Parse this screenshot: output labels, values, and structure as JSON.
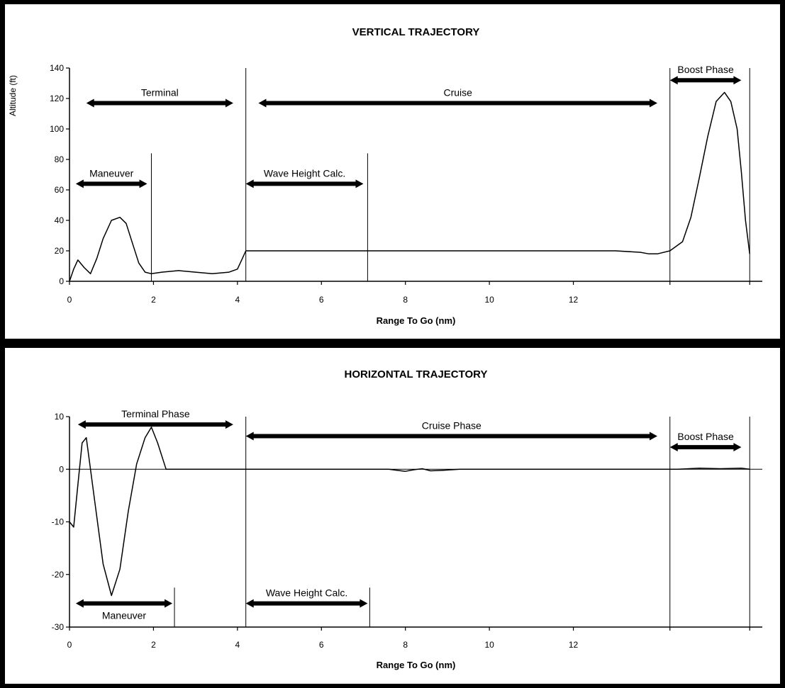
{
  "chart_data": [
    {
      "type": "line",
      "title": "VERTICAL TRAJECTORY",
      "xlabel": "Range To Go (nm)",
      "ylabel": "Altitude (ft)",
      "xlim": [
        0,
        16.5
      ],
      "ylim": [
        0,
        140
      ],
      "x_ticks": [
        "0",
        "2",
        "4",
        "6",
        "8",
        "10",
        "12"
      ],
      "y_ticks": [
        "0",
        "20",
        "40",
        "60",
        "80",
        "100",
        "120",
        "140"
      ],
      "phases": [
        {
          "label": "Terminal",
          "from": 0.4,
          "to": 3.9,
          "y": 117,
          "divider": 4.2
        },
        {
          "label": "Cruise",
          "from": 4.5,
          "to": 14.0,
          "y": 117,
          "divider": null
        },
        {
          "label": "Boost Phase",
          "from": 14.3,
          "to": 16.0,
          "y": 132,
          "divider": 16.2
        },
        {
          "label": "Maneuver",
          "from": 0.15,
          "to": 1.85,
          "y": 64,
          "divider": 1.95
        },
        {
          "label": "Wave Height Calc.",
          "from": 4.2,
          "to": 7.0,
          "y": 64,
          "divider": 7.1
        }
      ],
      "extra_dividers": [
        14.3
      ],
      "series": [
        {
          "x": [
            0,
            0.1,
            0.2,
            0.35,
            0.5,
            0.65,
            0.8,
            1.0,
            1.2,
            1.35,
            1.5,
            1.65,
            1.8,
            1.95,
            2.2,
            2.6,
            3.0,
            3.4,
            3.8,
            4.0,
            4.1,
            4.2,
            5,
            6,
            7,
            8,
            9,
            10,
            11,
            12,
            13,
            13.6,
            13.8,
            14.0,
            14.3,
            14.6,
            14.8,
            15.0,
            15.2,
            15.4,
            15.6,
            15.75,
            15.9,
            16.0,
            16.1,
            16.2
          ],
          "y": [
            0,
            8,
            14,
            9,
            5,
            15,
            28,
            40,
            42,
            38,
            25,
            12,
            6,
            5,
            6,
            7,
            6,
            5,
            6,
            8,
            14,
            20,
            20,
            20,
            20,
            20,
            20,
            20,
            20,
            20,
            20,
            19,
            18,
            18,
            20,
            26,
            42,
            68,
            95,
            118,
            124,
            118,
            100,
            72,
            40,
            18
          ]
        }
      ]
    },
    {
      "type": "line",
      "title": "HORIZONTAL TRAJECTORY",
      "xlabel": "Range To Go (nm)",
      "ylabel": "",
      "xlim": [
        0,
        16.5
      ],
      "ylim": [
        -30,
        10
      ],
      "x_ticks": [
        "0",
        "2",
        "4",
        "6",
        "8",
        "10",
        "12"
      ],
      "y_ticks": [
        "10",
        "0",
        "-10",
        "-20",
        "-30"
      ],
      "phases": [
        {
          "label": "Terminal Phase",
          "from": 0.2,
          "to": 3.9,
          "y": 8.5,
          "divider": 4.2
        },
        {
          "label": "Cruise Phase",
          "from": 4.2,
          "to": 14.0,
          "y": 6.3,
          "divider": null
        },
        {
          "label": "Boost Phase",
          "from": 14.3,
          "to": 16.0,
          "y": 4.2,
          "divider": 16.2
        },
        {
          "label": "Maneuver",
          "from": 0.15,
          "to": 2.45,
          "y": -25.5,
          "divider": 2.5
        },
        {
          "label": "Wave Height Calc.",
          "from": 4.2,
          "to": 7.1,
          "y": -25.5,
          "divider": 7.15
        }
      ],
      "extra_dividers": [
        14.3
      ],
      "series": [
        {
          "x": [
            0,
            0.1,
            0.2,
            0.3,
            0.4,
            0.6,
            0.8,
            1.0,
            1.2,
            1.4,
            1.6,
            1.8,
            1.95,
            2.1,
            2.3,
            2.5,
            3,
            4,
            5,
            6,
            7,
            7.6,
            8,
            8.2,
            8.4,
            8.6,
            8.9,
            9.3,
            10,
            11,
            12,
            13,
            14,
            14.5,
            15,
            15.5,
            16,
            16.2
          ],
          "y": [
            -10,
            -11,
            -3,
            5,
            6,
            -6,
            -18,
            -24,
            -19,
            -8,
            1,
            6,
            8,
            5,
            0,
            0,
            0,
            0,
            0,
            0,
            0,
            0,
            -0.4,
            -0.1,
            0.1,
            -0.3,
            -0.2,
            0,
            0,
            0,
            0,
            0,
            0,
            0,
            0.2,
            0.1,
            0.2,
            0
          ]
        }
      ]
    }
  ]
}
